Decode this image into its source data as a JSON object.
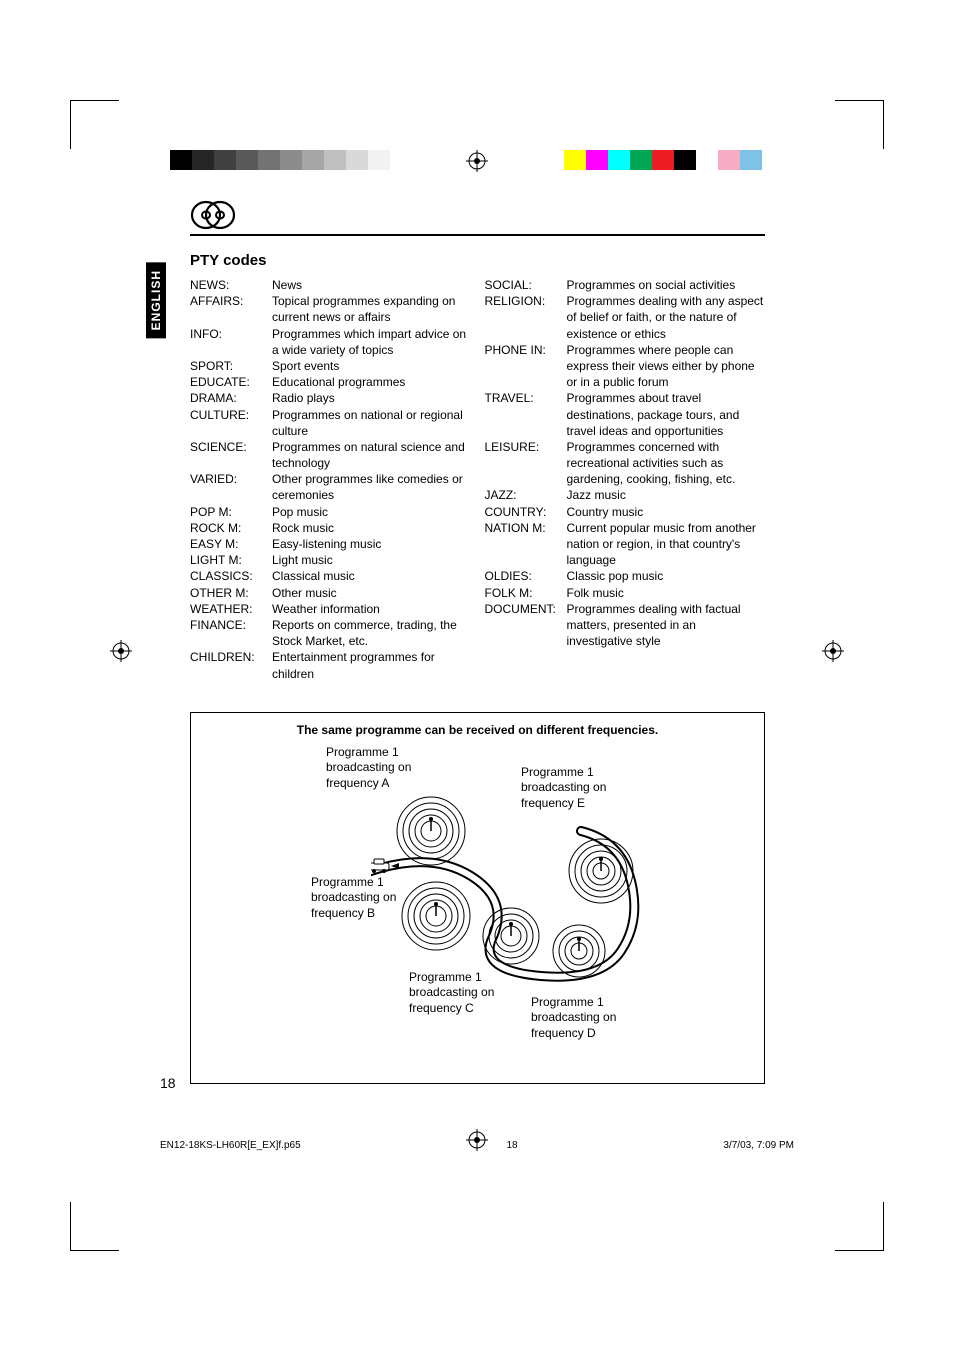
{
  "language_tab": "ENGLISH",
  "section_title": "PTY codes",
  "colors_left": [
    "#000000",
    "#262626",
    "#404040",
    "#595959",
    "#737373",
    "#8c8c8c",
    "#a6a6a6",
    "#bfbfbf",
    "#d9d9d9",
    "#f2f2f2"
  ],
  "colors_right": [
    "#ffff00",
    "#ff00ff",
    "#00ffff",
    "#00a651",
    "#ed1c24",
    "#000000",
    "#ffffff",
    "#f7adc6",
    "#7ec2e8",
    "#ffffff"
  ],
  "left_codes": [
    {
      "label": "NEWS:",
      "desc": "News"
    },
    {
      "label": "AFFAIRS:",
      "desc": "Topical programmes expanding on current news or affairs"
    },
    {
      "label": "INFO:",
      "desc": "Programmes which impart advice on a wide variety of topics"
    },
    {
      "label": "SPORT:",
      "desc": "Sport events"
    },
    {
      "label": "EDUCATE:",
      "desc": "Educational programmes"
    },
    {
      "label": "DRAMA:",
      "desc": "Radio plays"
    },
    {
      "label": "CULTURE:",
      "desc": "Programmes on national or regional culture"
    },
    {
      "label": "SCIENCE:",
      "desc": "Programmes on natural science and technology"
    },
    {
      "label": "VARIED:",
      "desc": "Other programmes like comedies or ceremonies"
    },
    {
      "label": "POP M:",
      "desc": "Pop music"
    },
    {
      "label": "ROCK M:",
      "desc": "Rock music"
    },
    {
      "label": "EASY M:",
      "desc": "Easy-listening music"
    },
    {
      "label": "LIGHT M:",
      "desc": "Light music"
    },
    {
      "label": "CLASSICS:",
      "desc": "Classical music"
    },
    {
      "label": "OTHER M:",
      "desc": "Other music"
    },
    {
      "label": "WEATHER:",
      "desc": "Weather information"
    },
    {
      "label": "FINANCE:",
      "desc": "Reports on commerce, trading, the Stock Market, etc."
    },
    {
      "label": "CHILDREN:",
      "desc": "Entertainment programmes for children"
    }
  ],
  "right_codes": [
    {
      "label": "SOCIAL:",
      "desc": "Programmes on social activities"
    },
    {
      "label": "RELIGION:",
      "desc": "Programmes dealing with any aspect of belief or faith, or the nature of existence or ethics"
    },
    {
      "label": "PHONE IN:",
      "desc": "Programmes where people can express their views either by phone or in a public forum"
    },
    {
      "label": "TRAVEL:",
      "desc": "Programmes about travel destinations, package tours, and travel ideas and opportunities"
    },
    {
      "label": "LEISURE:",
      "desc": "Programmes concerned with recreational activities such as gardening, cooking, fishing, etc."
    },
    {
      "label": "JAZZ:",
      "desc": "Jazz music"
    },
    {
      "label": "COUNTRY:",
      "desc": "Country music"
    },
    {
      "label": "NATION M:",
      "desc": "Current popular music from another nation or region, in that country's language"
    },
    {
      "label": "OLDIES:",
      "desc": "Classic pop music"
    },
    {
      "label": "FOLK M:",
      "desc": "Folk music"
    },
    {
      "label": "DOCUMENT:",
      "desc": "Programmes dealing with factual matters, presented in an investigative style"
    }
  ],
  "freq_title": "The same programme can be received on different frequencies.",
  "captions": {
    "a": "Programme 1\nbroadcasting on\nfrequency A",
    "b": "Programme 1\nbroadcasting on\nfrequency B",
    "c": "Programme 1\nbroadcasting on\nfrequency C",
    "d": "Programme 1\nbroadcasting on\nfrequency D",
    "e": "Programme 1\nbroadcasting on\nfrequency E"
  },
  "page_number": "18",
  "footer": {
    "file": "EN12-18KS-LH60R[E_EX]f.p65",
    "pg": "18",
    "date": "3/7/03, 7:09 PM"
  }
}
